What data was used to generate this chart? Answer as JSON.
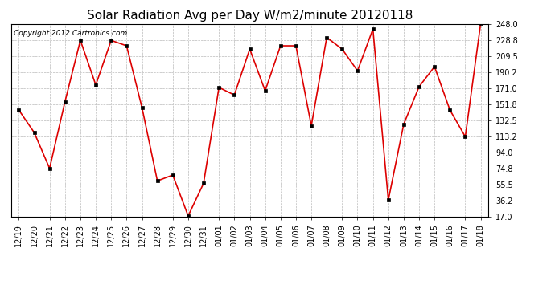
{
  "title": "Solar Radiation Avg per Day W/m2/minute 20120118",
  "copyright_text": "Copyright 2012 Cartronics.com",
  "x_labels": [
    "12/19",
    "12/20",
    "12/21",
    "12/22",
    "12/23",
    "12/24",
    "12/25",
    "12/26",
    "12/27",
    "12/28",
    "12/29",
    "12/30",
    "12/31",
    "01/01",
    "01/02",
    "01/03",
    "01/04",
    "01/05",
    "01/06",
    "01/07",
    "01/08",
    "01/09",
    "01/10",
    "01/11",
    "01/12",
    "01/13",
    "01/14",
    "01/15",
    "01/16",
    "01/17",
    "01/18"
  ],
  "y_values": [
    145.0,
    118.0,
    75.0,
    155.0,
    228.5,
    175.0,
    228.5,
    222.0,
    148.0,
    60.0,
    67.0,
    18.0,
    57.0,
    172.0,
    163.0,
    218.0,
    168.0,
    222.0,
    222.0,
    126.0,
    232.0,
    218.0,
    192.0,
    242.0,
    37.0,
    128.0,
    173.0,
    197.0,
    145.0,
    113.0,
    249.0
  ],
  "line_color": "#dd0000",
  "marker_color": "#000000",
  "background_color": "#ffffff",
  "plot_bg_color": "#ffffff",
  "grid_color": "#bbbbbb",
  "ylim": [
    17.0,
    248.0
  ],
  "yticks": [
    17.0,
    36.2,
    55.5,
    74.8,
    94.0,
    113.2,
    132.5,
    151.8,
    171.0,
    190.2,
    209.5,
    228.8,
    248.0
  ],
  "title_fontsize": 11,
  "tick_fontsize": 7,
  "copyright_fontsize": 6.5
}
